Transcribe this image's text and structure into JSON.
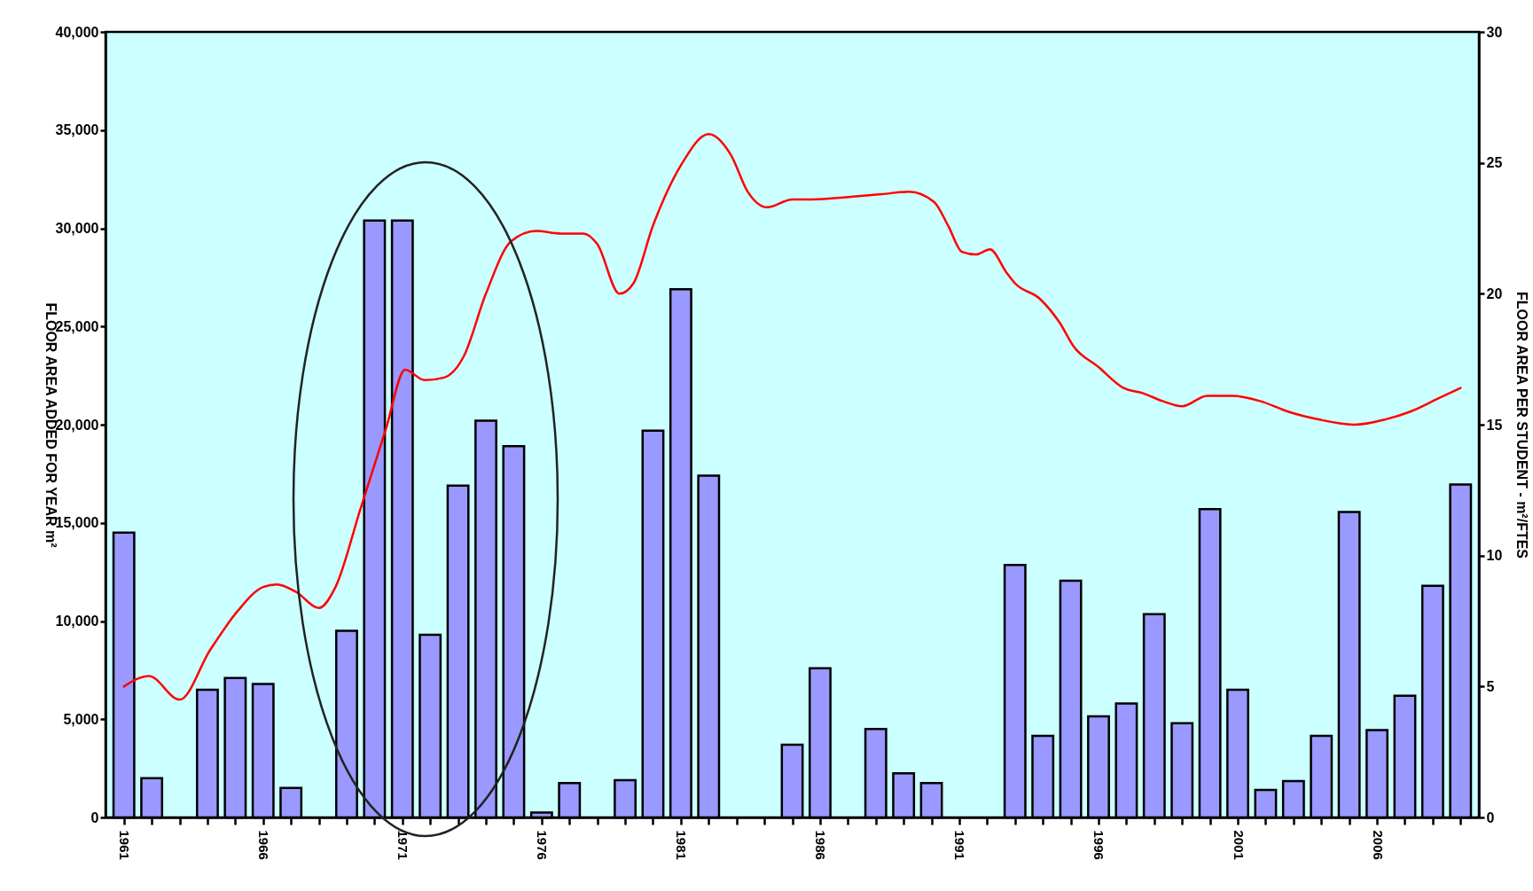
{
  "chart_data": {
    "type": "bar",
    "ylabel": "FLOOR AREA ADDED FOR YEAR m²",
    "y2label": "FLOOR AREA PER STUDENT - m²/FTES",
    "xlim": [
      1960.5,
      2009.5
    ],
    "xticks": [
      1961,
      {
        "value": 1962,
        "label": null
      },
      {
        "value": 1963,
        "label": null
      },
      {
        "value": 1964,
        "label": null
      },
      {
        "value": 1965,
        "label": null
      },
      1966,
      {
        "value": 1967,
        "label": null
      },
      {
        "value": 1968,
        "label": null
      },
      {
        "value": 1969,
        "label": null
      },
      {
        "value": 1970,
        "label": null
      },
      1971,
      {
        "value": 1972,
        "label": null
      },
      {
        "value": 1973,
        "label": null
      },
      {
        "value": 1974,
        "label": null
      },
      {
        "value": 1975,
        "label": null
      },
      1976,
      {
        "value": 1977,
        "label": null
      },
      {
        "value": 1978,
        "label": null
      },
      {
        "value": 1979,
        "label": null
      },
      {
        "value": 1980,
        "label": null
      },
      1981,
      {
        "value": 1982,
        "label": null
      },
      {
        "value": 1983,
        "label": null
      },
      {
        "value": 1984,
        "label": null
      },
      {
        "value": 1985,
        "label": null
      },
      1986,
      {
        "value": 1987,
        "label": null
      },
      {
        "value": 1988,
        "label": null
      },
      {
        "value": 1989,
        "label": null
      },
      {
        "value": 1990,
        "label": null
      },
      1991,
      {
        "value": 1992,
        "label": null
      },
      {
        "value": 1993,
        "label": null
      },
      {
        "value": 1994,
        "label": null
      },
      {
        "value": 1995,
        "label": null
      },
      1996,
      {
        "value": 1997,
        "label": null
      },
      {
        "value": 1998,
        "label": null
      },
      {
        "value": 1999,
        "label": null
      },
      {
        "value": 2000,
        "label": null
      },
      2001,
      {
        "value": 2002,
        "label": null
      },
      {
        "value": 2003,
        "label": null
      },
      {
        "value": 2004,
        "label": null
      },
      {
        "value": 2005,
        "label": null
      },
      2006,
      {
        "value": 2007,
        "label": null
      },
      {
        "value": 2008,
        "label": null
      },
      {
        "value": 2009,
        "label": null
      }
    ],
    "ylim": [
      0,
      40000
    ],
    "yticks": [
      0,
      {
        "value": 5000,
        "label": "5,000"
      },
      {
        "value": 10000,
        "label": "10,000"
      },
      {
        "value": 15000,
        "label": "15,000"
      },
      {
        "value": 20000,
        "label": "20,000"
      },
      {
        "value": 25000,
        "label": "25,000"
      },
      {
        "value": 30000,
        "label": "30,000"
      },
      {
        "value": 35000,
        "label": "35,000"
      },
      {
        "value": 40000,
        "label": "40,000"
      }
    ],
    "y2lim": [
      0,
      30
    ],
    "y2ticks": [
      0,
      5,
      10,
      15,
      20,
      25,
      30
    ],
    "series": [
      {
        "color": "#9999ff",
        "x": [
          1961,
          1962,
          1964,
          1965,
          1966,
          1967,
          1969,
          1970,
          1971,
          1972,
          1973,
          1974,
          1975,
          1976,
          1977,
          1979,
          1980,
          1981,
          1982,
          1985,
          1986,
          1988,
          1989,
          1990,
          1993,
          1994,
          1995,
          1996,
          1997,
          1998,
          1999,
          2000,
          2001,
          2002,
          2003,
          2004,
          2005,
          2006,
          2007,
          2008,
          2009
        ],
        "values": [
          14500,
          2000,
          6500,
          7100,
          6800,
          1500,
          9500,
          30400,
          30400,
          9300,
          16900,
          20200,
          18900,
          250,
          1750,
          1900,
          19700,
          26900,
          17400,
          3700,
          7600,
          4500,
          2250,
          1750,
          12850,
          4150,
          12050,
          5150,
          5800,
          10350,
          4800,
          15700,
          6500,
          1400,
          1850,
          4150,
          15550,
          4450,
          6200,
          11800,
          16950
        ]
      },
      {
        "type": "line",
        "axis": "y2",
        "color": "#ff0000",
        "x": [
          1961.0,
          1961.9,
          1963.0,
          1964.1,
          1965.1,
          1966.0,
          1966.5,
          1967.2,
          1968.0,
          1968.6,
          1969.5,
          1970.4,
          1971.1,
          1971.8,
          1972.5,
          1973.2,
          1974.0,
          1974.9,
          1975.8,
          1976.7,
          1977.5,
          1978.0,
          1978.8,
          1979.3,
          1980.0,
          1981.0,
          1982.0,
          1982.8,
          1983.4,
          1984.1,
          1985.0,
          1985.7,
          1987.1,
          1988.2,
          1989.2,
          1990.1,
          1990.6,
          1991.1,
          1991.6,
          1992.1,
          1992.7,
          1993.0,
          1993.9,
          1994.6,
          1995.1,
          1996.0,
          1996.9,
          1997.6,
          1998.3,
          1999.0,
          1999.9,
          2000.8,
          2001.8,
          2002.8,
          2003.9,
          2005.2,
          2006.3,
          2007.2,
          2008.2,
          2009.0
        ],
        "values": [
          5.0,
          5.4,
          4.5,
          6.4,
          7.9,
          8.8,
          8.9,
          8.6,
          8.0,
          8.8,
          11.8,
          14.8,
          17.1,
          16.7,
          16.8,
          17.6,
          20.0,
          22.0,
          22.4,
          22.3,
          22.3,
          21.9,
          20.0,
          20.4,
          22.6,
          24.9,
          26.1,
          25.3,
          23.9,
          23.3,
          23.6,
          23.6,
          23.7,
          23.8,
          23.9,
          23.5,
          22.6,
          21.6,
          21.5,
          21.7,
          20.8,
          20.4,
          19.8,
          18.9,
          18.0,
          17.2,
          16.4,
          16.2,
          15.9,
          15.7,
          16.1,
          16.1,
          15.9,
          15.5,
          15.2,
          15.0,
          15.2,
          15.5,
          16.0,
          16.4
        ]
      }
    ]
  }
}
